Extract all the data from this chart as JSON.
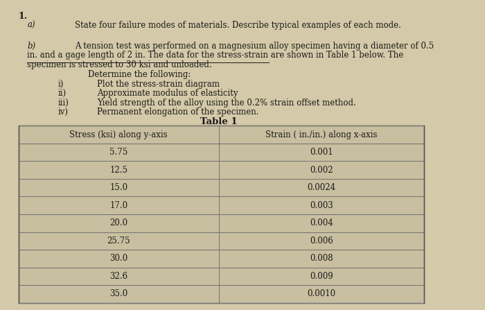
{
  "bg_color": "#d4c9a8",
  "text_color": "#1a1a1a",
  "title_number": "1.",
  "part_a_label": "a)",
  "part_a_text": "State four failure modes of materials. Describe typical examples of each mode.",
  "part_b_label": "b)",
  "part_b_text1": "A tension test was performed on a magnesium alloy specimen having a diameter of 0.5",
  "part_b_text2": "in. and a gage length of 2 in. The data for the stress-strain are shown in Table 1 below. The",
  "part_b_text3": "specimen is stressed to 30 ksi and unloaded.",
  "determine_text": "Determine the following:",
  "items": [
    [
      "i)",
      "Plot the stress-strain diagram"
    ],
    [
      "ii)",
      "Approximate modulus of elasticity"
    ],
    [
      "iii)",
      "Yield strength of the alloy using the 0.2% strain offset method."
    ],
    [
      "iv)",
      "Permanent elongation of the specimen."
    ]
  ],
  "table_title": "Table 1",
  "col1_header": "Stress (ksi) along y-axis",
  "col2_header": "Strain ( in./in.) along x-axis",
  "stress_str": [
    "5.75",
    "12.5",
    "15.0",
    "17.0",
    "20.0",
    "25.75",
    "30.0",
    "32.6",
    "35.0"
  ],
  "strain_str": [
    "0.001",
    "0.002",
    "0.0024",
    "0.003",
    "0.004",
    "0.006",
    "0.008",
    "0.009",
    "0.0010"
  ],
  "table_bg": "#c8bfa0",
  "table_line_color": "#777777",
  "font_size_body": 8.5,
  "font_size_table": 8.5
}
